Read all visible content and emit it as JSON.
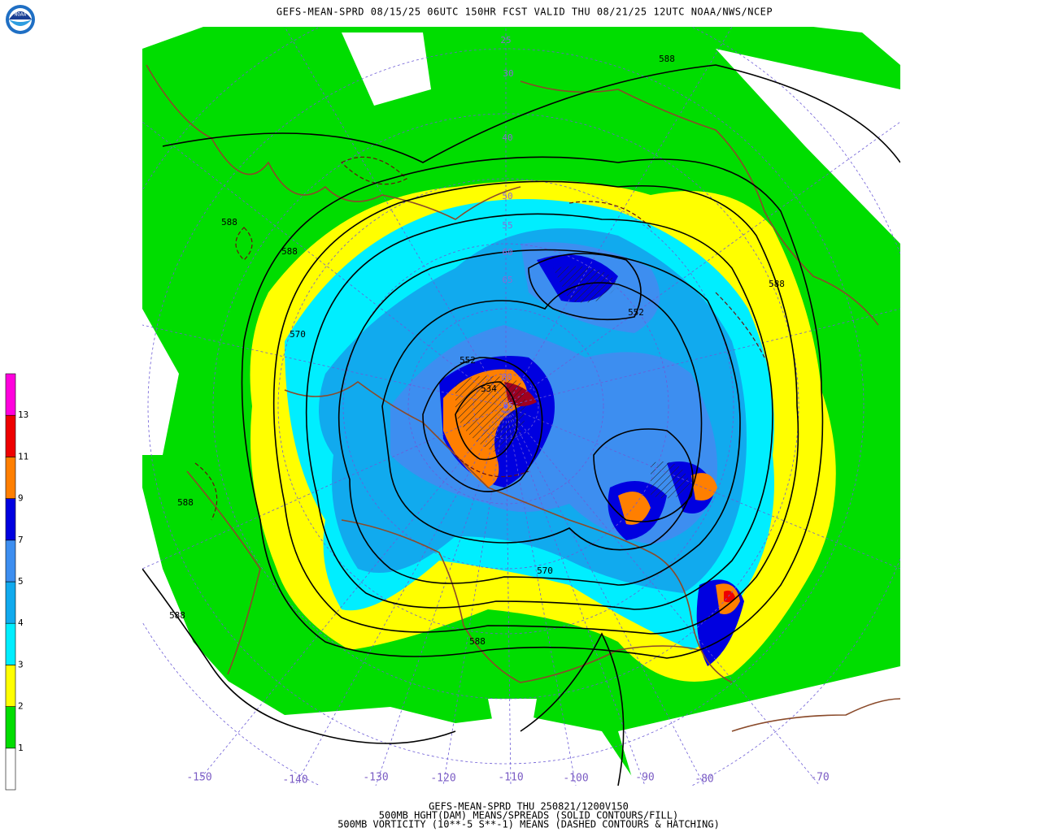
{
  "header": {
    "title": "GEFS-MEAN-SPRD 08/15/25 06UTC 150HR FCST VALID THU 08/21/25 12UTC NOAA/NWS/NCEP",
    "logo_text": "NOAA"
  },
  "colorbar": {
    "labels": [
      "1",
      "2",
      "3",
      "4",
      "5",
      "7",
      "9",
      "11",
      "13"
    ],
    "colors": [
      "#ffffff",
      "#00dd00",
      "#ffff00",
      "#00eeff",
      "#11aaee",
      "#3d8ef0",
      "#0000e0",
      "#ff7f00",
      "#ee0000",
      "#ff00dd"
    ]
  },
  "map": {
    "lon_labels": [
      "-150",
      "-140",
      "-130",
      "-120",
      "-110",
      "-100",
      "-90",
      "-80",
      "-70"
    ],
    "lat_labels": [
      "25",
      "30",
      "40",
      "50",
      "55",
      "60",
      "65",
      "80",
      "85"
    ],
    "contour_labels": [
      "588",
      "588",
      "588",
      "588",
      "588",
      "588",
      "588",
      "570",
      "570",
      "552",
      "552",
      "534"
    ]
  },
  "footer": {
    "lines": [
      "GEFS-MEAN-SPRD THU 250821/1200V150",
      "500MB HGHT(DAM) MEANS/SPREADS (SOLID CONTOURS/FILL)",
      "500MB VORTICITY (10**-5 S**-1) MEANS (DASHED CONTOURS & HATCHING)"
    ]
  }
}
